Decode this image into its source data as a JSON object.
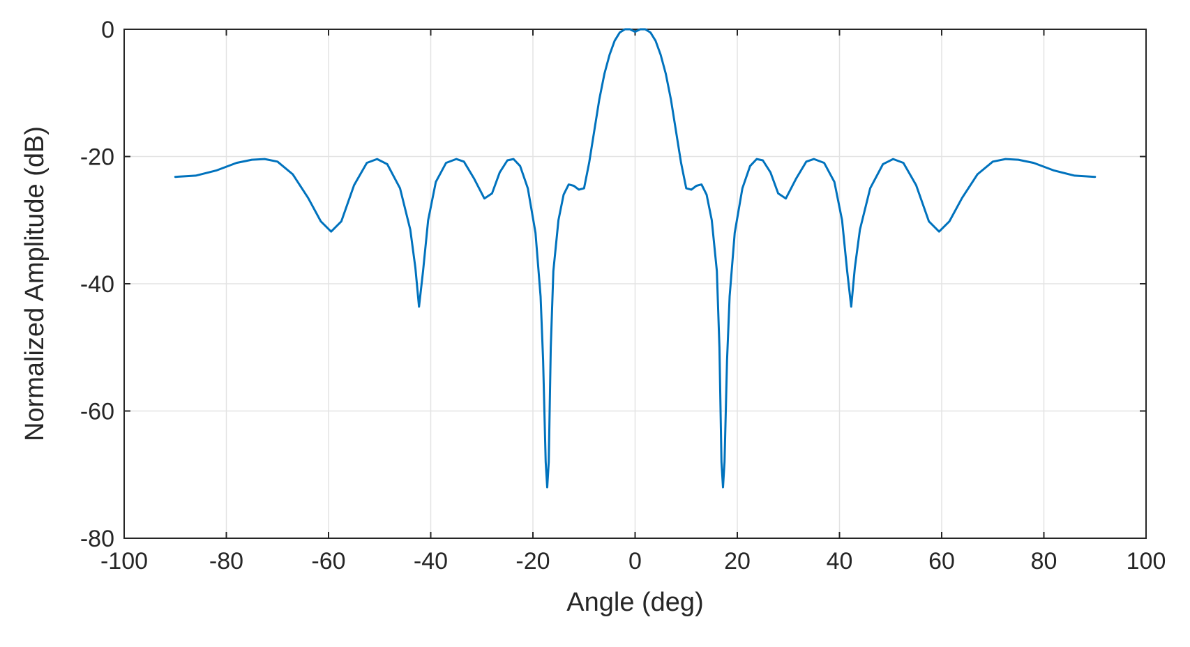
{
  "chart_data": {
    "type": "line",
    "title": "",
    "xlabel": "Angle (deg)",
    "ylabel": "Normalized Amplitude (dB)",
    "xlim": [
      -100,
      100
    ],
    "ylim": [
      -80,
      0
    ],
    "xticks": [
      "-100",
      "-80",
      "-60",
      "-40",
      "-20",
      "0",
      "20",
      "40",
      "60",
      "80",
      "100"
    ],
    "yticks": [
      "0",
      "-20",
      "-40",
      "-60",
      "-80"
    ],
    "grid": true,
    "legend": "none",
    "series": [
      {
        "color": "#0072bd",
        "x": [
          -90,
          -86,
          -82,
          -78,
          -75,
          -72.5,
          -70,
          -67,
          -64,
          -61.5,
          -59.5,
          -57.5,
          -55,
          -52.5,
          -50.5,
          -48.5,
          -46,
          -44,
          -43,
          -42.3,
          -41.5,
          -40.5,
          -39,
          -37,
          -35,
          -33.5,
          -31.5,
          -29.5,
          -28,
          -26.5,
          -25,
          -23.8,
          -22.5,
          -21,
          -19.5,
          -18.5,
          -18,
          -17.5,
          -17.2,
          -16.9,
          -16.5,
          -16,
          -15,
          -14,
          -13,
          -12,
          -11,
          -10,
          -9,
          -8,
          -7,
          -6,
          -5,
          -4,
          -3,
          -2,
          -1,
          0,
          1,
          2,
          3,
          4,
          5,
          6,
          7,
          8,
          9,
          10,
          11,
          12,
          13,
          14,
          15,
          16,
          16.5,
          16.9,
          17.2,
          17.5,
          18,
          18.5,
          19.5,
          21,
          22.5,
          23.8,
          25,
          26.5,
          28,
          29.5,
          31.5,
          33.5,
          35,
          37,
          39,
          40.5,
          41.5,
          42.3,
          43,
          44,
          46,
          48.5,
          50.5,
          52.5,
          55,
          57.5,
          59.5,
          61.5,
          64,
          67,
          70,
          72.5,
          75,
          78,
          82,
          86,
          90
        ],
        "y": [
          -23.2,
          -23,
          -22.2,
          -21,
          -20.5,
          -20.4,
          -20.8,
          -22.8,
          -26.5,
          -30.2,
          -31.8,
          -30.2,
          -24.5,
          -21,
          -20.4,
          -21.2,
          -25,
          -31.5,
          -37.5,
          -43.6,
          -38,
          -30,
          -24,
          -21,
          -20.4,
          -20.8,
          -23.5,
          -26.6,
          -25.8,
          -22.5,
          -20.6,
          -20.4,
          -21.5,
          -25,
          -32,
          -42,
          -52,
          -68,
          -72,
          -68,
          -50,
          -38,
          -30,
          -26,
          -24.4,
          -24.6,
          -25.2,
          -25,
          -21,
          -16,
          -11,
          -7,
          -4,
          -1.8,
          -0.5,
          0,
          0,
          -0.4,
          0,
          0,
          -0.5,
          -1.8,
          -4,
          -7,
          -11,
          -16,
          -21,
          -25,
          -25.2,
          -24.6,
          -24.4,
          -26,
          -30,
          -38,
          -50,
          -68,
          -72,
          -68,
          -52,
          -42,
          -32,
          -25,
          -21.5,
          -20.4,
          -20.6,
          -22.5,
          -25.8,
          -26.6,
          -23.5,
          -20.8,
          -20.4,
          -21,
          -24,
          -30,
          -38,
          -43.6,
          -37.5,
          -31.5,
          -25,
          -21.2,
          -20.4,
          -21,
          -24.5,
          -30.2,
          -31.8,
          -30.2,
          -26.5,
          -22.8,
          -20.8,
          -20.4,
          -20.5,
          -21,
          -22.2,
          -23,
          -23.2
        ]
      }
    ]
  }
}
